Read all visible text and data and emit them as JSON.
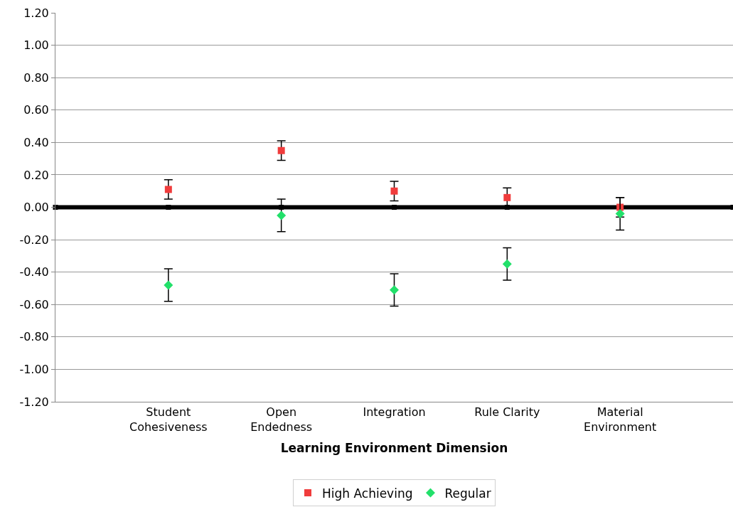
{
  "chart_data": {
    "type": "scatter",
    "xlabel": "Learning Environment Dimension",
    "categories": [
      null,
      "Student\nCohesiveness",
      "Open\nEndedness",
      "Integration",
      "Rule Clarity",
      "Material\nEnvironment",
      null
    ],
    "series": [
      {
        "type": "line",
        "color": "#000000",
        "marker": "square",
        "values": [
          0,
          0,
          0,
          0,
          0,
          0,
          0
        ]
      },
      {
        "name": "High Achieving",
        "color": "#f03c3c",
        "marker": "square",
        "values": [
          null,
          0.11,
          0.35,
          0.1,
          0.06,
          0.0,
          null
        ],
        "errors": [
          null,
          0.06,
          0.06,
          0.06,
          0.06,
          0.06,
          null
        ]
      },
      {
        "name": "Regular",
        "color": "#22e06a",
        "marker": "diamond",
        "values": [
          null,
          -0.48,
          -0.05,
          -0.51,
          -0.35,
          -0.04,
          null
        ],
        "errors": [
          null,
          0.1,
          0.1,
          0.1,
          0.1,
          0.1,
          null
        ]
      }
    ],
    "ylim": [
      -1.2,
      1.2
    ],
    "yticks": [
      {
        "value": -1.2,
        "label": "-1.20"
      },
      {
        "value": -1.0,
        "label": "-1.00"
      },
      {
        "value": -0.8,
        "label": "-0.80"
      },
      {
        "value": -0.6,
        "label": "-0.60"
      },
      {
        "value": -0.4,
        "label": "-0.40"
      },
      {
        "value": -0.2,
        "label": "-0.20"
      },
      {
        "value": 0,
        "label": "0.00"
      },
      {
        "value": 0.2,
        "label": "0.20"
      },
      {
        "value": 0.4,
        "label": "0.40"
      },
      {
        "value": 0.6,
        "label": "0.60"
      },
      {
        "value": 0.8,
        "label": "0.80"
      },
      {
        "value": 1.0,
        "label": "1.00"
      },
      {
        "value": 1.2,
        "label": "1.20"
      }
    ],
    "grid": "y",
    "legend": "bottom"
  }
}
